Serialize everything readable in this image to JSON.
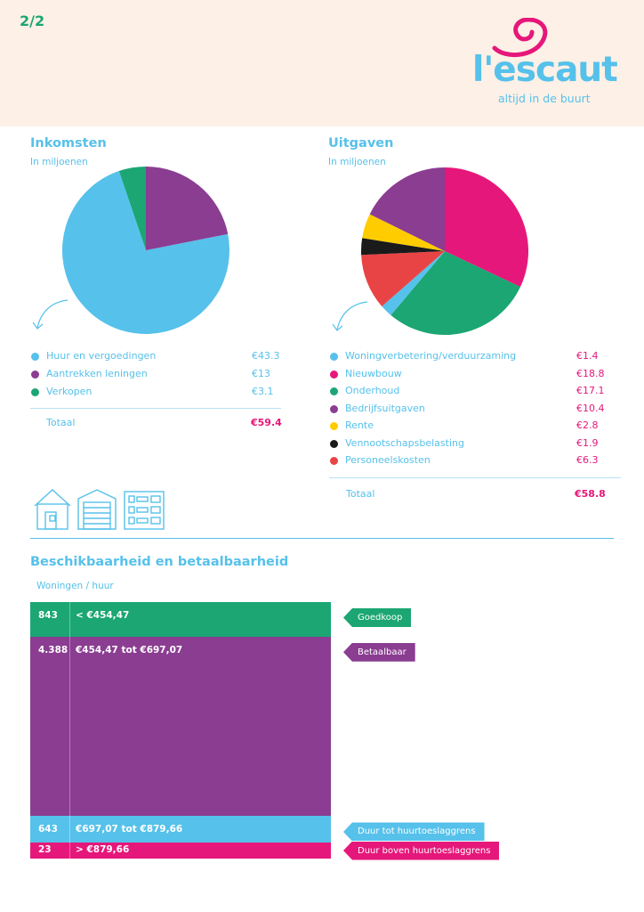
{
  "header": {
    "page": "2/2",
    "logo_text": "l'escaut",
    "logo_tagline": "altijd in de buurt"
  },
  "colors": {
    "blue": "#56c1ea",
    "purple": "#8a3d91",
    "green": "#1ba673",
    "pink": "#e6177a",
    "yellow": "#ffcc00",
    "black": "#1a1a1a",
    "red": "#e94445"
  },
  "income": {
    "title": "Inkomsten",
    "subtitle": "In miljoenen",
    "total_label": "Totaal",
    "total_value": "€59.4"
  },
  "expenses": {
    "title": "Uitgaven",
    "subtitle": "In miljoenen",
    "total_label": "Totaal",
    "total_value": "€58.8"
  },
  "availability": {
    "title": "Beschikbaarheid en betaalbaarheid",
    "subtitle": "Woningen / huur"
  },
  "icons": [
    "house-icon",
    "garage-icon",
    "apartment-building-icon"
  ],
  "chart_data": [
    {
      "type": "pie",
      "title": "Inkomsten",
      "subtitle": "In miljoenen",
      "start_angle_deg": 0,
      "order": "counterclockwise",
      "slices": [
        {
          "name": "Verkopen",
          "value": 3.1,
          "label": "€3.1",
          "color": "#1ba673",
          "legend_order": 2
        },
        {
          "name": "Huur en vergoedingen",
          "value": 43.3,
          "label": "€43.3",
          "color": "#56c1ea",
          "legend_order": 0
        },
        {
          "name": "Aantrekken leningen",
          "value": 13,
          "label": "€13",
          "color": "#8a3d91",
          "legend_order": 1
        }
      ]
    },
    {
      "type": "pie",
      "title": "Uitgaven",
      "subtitle": "In miljoenen",
      "start_angle_deg": 0,
      "order": "clockwise",
      "slices": [
        {
          "name": "Nieuwbouw",
          "value": 18.8,
          "label": "€18.8",
          "color": "#e6177a",
          "legend_order": 1
        },
        {
          "name": "Onderhoud",
          "value": 17.1,
          "label": "€17.1",
          "color": "#1ba673",
          "legend_order": 2
        },
        {
          "name": "Woningverbetering/verduurzaming",
          "value": 1.4,
          "label": "€1.4",
          "color": "#56c1ea",
          "legend_order": 0
        },
        {
          "name": "Personeelskosten",
          "value": 6.3,
          "label": "€6.3",
          "color": "#e94445",
          "legend_order": 6
        },
        {
          "name": "Vennootschapsbelasting",
          "value": 1.9,
          "label": "€1.9",
          "color": "#1a1a1a",
          "legend_order": 5
        },
        {
          "name": "Rente",
          "value": 2.8,
          "label": "€2.8",
          "color": "#ffcc00",
          "legend_order": 4
        },
        {
          "name": "Bedrijfsuitgaven",
          "value": 10.4,
          "label": "€10.4",
          "color": "#8a3d91",
          "legend_order": 3
        }
      ]
    },
    {
      "type": "bar",
      "orientation": "stacked-vertical",
      "title": "Beschikbaarheid en betaalbaarheid",
      "subtitle": "Woningen / huur",
      "segments": [
        {
          "count": 843,
          "count_label": "843",
          "range": "< €454,47",
          "category": "Goedkoop",
          "color": "#1ba673"
        },
        {
          "count": 4388,
          "count_label": "4.388",
          "range": "€454,47 tot €697,07",
          "category": "Betaalbaar",
          "color": "#8a3d91"
        },
        {
          "count": 643,
          "count_label": "643",
          "range": "€697,07 tot €879,66",
          "category": "Duur tot huurtoeslaggrens",
          "color": "#56c1ea"
        },
        {
          "count": 23,
          "count_label": "23",
          "range": "> €879,66",
          "category": "Duur boven huurtoeslaggrens",
          "color": "#e6177a"
        }
      ]
    }
  ]
}
